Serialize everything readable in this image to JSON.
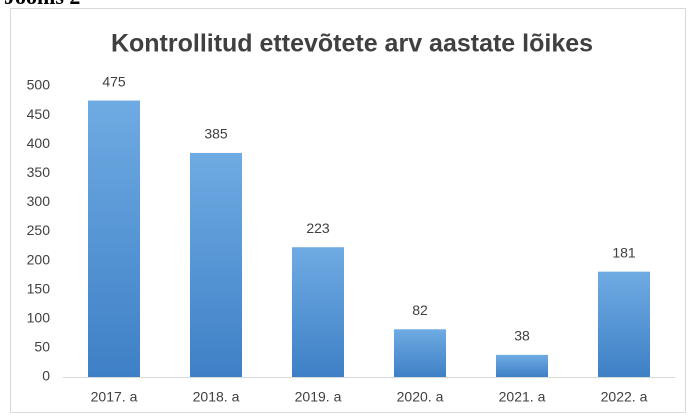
{
  "caption": "Joonis 2",
  "chart_data": {
    "type": "bar",
    "title": "Kontrollitud ettevõtete arv aastate lõikes",
    "categories": [
      "2017. a",
      "2018. a",
      "2019. a",
      "2020. a",
      "2021. a",
      "2022. a"
    ],
    "values": [
      475,
      385,
      223,
      82,
      38,
      181
    ],
    "color": "#5b9bd5",
    "ylim": [
      0,
      500
    ],
    "yticks": [
      0,
      50,
      100,
      150,
      200,
      250,
      300,
      350,
      400,
      450,
      500
    ],
    "grid": false,
    "data_labels": true
  }
}
